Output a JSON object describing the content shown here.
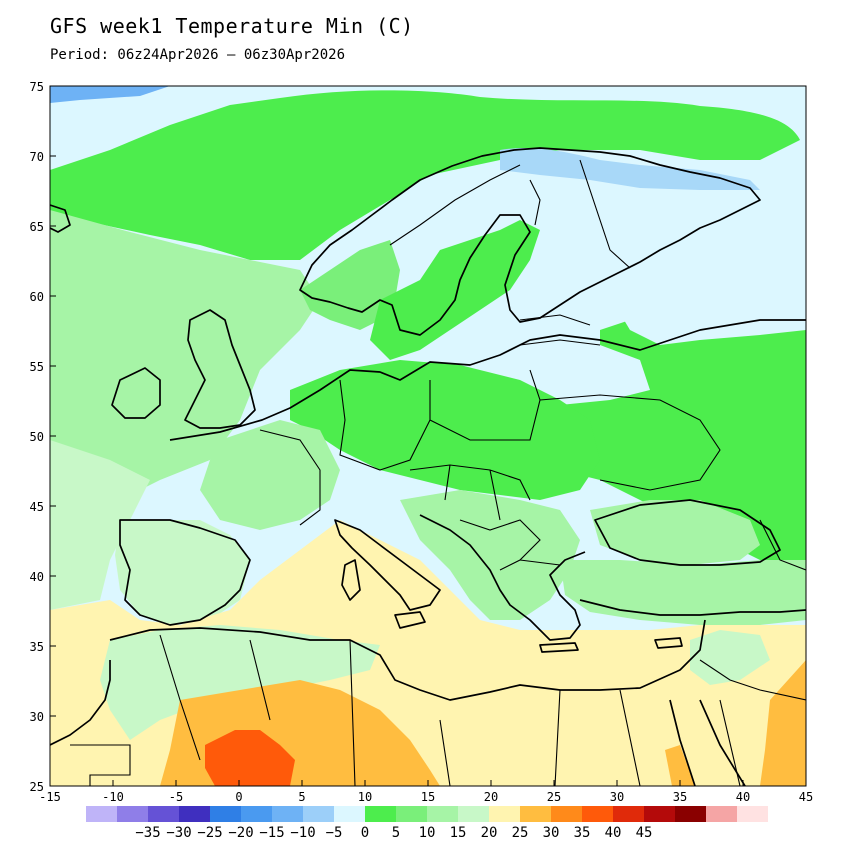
{
  "title": "GFS week1 Temperature Min (C)",
  "subtitle": "Period: 06z24Apr2026 – 06z30Apr2026",
  "axes": {
    "lon_ticks": [
      "-15",
      "-10",
      "-5",
      "0",
      "5",
      "10",
      "15",
      "20",
      "25",
      "30",
      "35",
      "40",
      "45"
    ],
    "lat_ticks": [
      "75",
      "70",
      "65",
      "60",
      "55",
      "50",
      "45",
      "40",
      "35",
      "30",
      "25"
    ]
  },
  "colorbar": {
    "colors": [
      "#bfb4f8",
      "#8f7ee8",
      "#6552d6",
      "#3f2fbf",
      "#2f7fe6",
      "#4a9af0",
      "#6eb2f5",
      "#9ccff9",
      "#dcf7ff",
      "#4ded4d",
      "#7aef7a",
      "#a6f4a6",
      "#c8f8c8",
      "#fff4b0",
      "#ffbd40",
      "#ff8a1a",
      "#ff5a0a",
      "#e02a0a",
      "#b40a0a",
      "#8a0000",
      "#f5a5a5",
      "#ffe2e2"
    ],
    "labels": [
      "−35",
      "−30",
      "−25",
      "−20",
      "−15",
      "−10",
      "−5",
      "0",
      "5",
      "10",
      "15",
      "20",
      "25",
      "30",
      "35",
      "40",
      "45"
    ]
  },
  "palette": {
    "frost": "#dcf7ff",
    "cold": "#a8d8f8",
    "colder": "#6eb2f5",
    "coldest": "#4a9af0",
    "green_bright": "#4ded4d",
    "green_mid": "#7aef7a",
    "green_light": "#a6f4a6",
    "green_pale": "#c8f8c8",
    "yellow": "#fff4b0",
    "orange": "#ffbd40",
    "orange_dark": "#ff8a1a",
    "red_orange": "#ff5a0a"
  }
}
